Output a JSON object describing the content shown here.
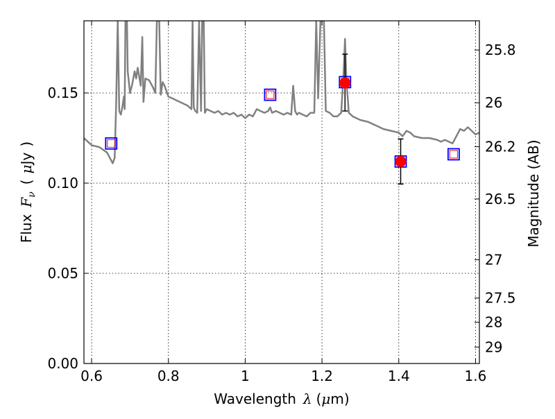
{
  "chart_data": {
    "type": "scatter",
    "xlabel": "Wavelength",
    "xlabel_symbol": "λ",
    "xlabel_unit_prefix": "μ",
    "xlabel_unit": "m",
    "ylabel": "Flux",
    "ylabel_symbol": "F",
    "ylabel_symbol_sub": "ν",
    "ylabel_unit_prefix": "μ",
    "ylabel_unit": "Jy",
    "y2label": "Magnitude (AB)",
    "xlim": [
      0.58,
      1.61
    ],
    "ylim": [
      0.0,
      0.19
    ],
    "grid": true,
    "x_ticks": [
      {
        "value": 0.6,
        "label": "0.6"
      },
      {
        "value": 0.8,
        "label": "0.8"
      },
      {
        "value": 1.0,
        "label": "1"
      },
      {
        "value": 1.2,
        "label": "1.2"
      },
      {
        "value": 1.4,
        "label": "1.4"
      },
      {
        "value": 1.6,
        "label": "1.6"
      }
    ],
    "y_ticks": [
      {
        "value": 0.0,
        "label": "0.00"
      },
      {
        "value": 0.05,
        "label": "0.05"
      },
      {
        "value": 0.1,
        "label": "0.10"
      },
      {
        "value": 0.15,
        "label": "0.15"
      }
    ],
    "y2_ticks": [
      {
        "mag": 25.8,
        "label": "25.8"
      },
      {
        "mag": 26.0,
        "label": "26"
      },
      {
        "mag": 26.2,
        "label": "26.2"
      },
      {
        "mag": 26.5,
        "label": "26.5"
      },
      {
        "mag": 27.0,
        "label": "27"
      },
      {
        "mag": 27.5,
        "label": "27.5"
      },
      {
        "mag": 28.0,
        "label": "28"
      },
      {
        "mag": 29.0,
        "label": "29"
      }
    ],
    "spectrum": {
      "color": "#808080",
      "points": [
        [
          0.58,
          0.125
        ],
        [
          0.6,
          0.121
        ],
        [
          0.62,
          0.12
        ],
        [
          0.64,
          0.117
        ],
        [
          0.65,
          0.113
        ],
        [
          0.655,
          0.111
        ],
        [
          0.66,
          0.114
        ],
        [
          0.664,
          0.145
        ],
        [
          0.668,
          0.19
        ],
        [
          0.672,
          0.14
        ],
        [
          0.676,
          0.138
        ],
        [
          0.68,
          0.142
        ],
        [
          0.684,
          0.148
        ],
        [
          0.686,
          0.141
        ],
        [
          0.688,
          0.19
        ],
        [
          0.692,
          0.19
        ],
        [
          0.694,
          0.162
        ],
        [
          0.7,
          0.15
        ],
        [
          0.706,
          0.155
        ],
        [
          0.712,
          0.162
        ],
        [
          0.716,
          0.158
        ],
        [
          0.72,
          0.164
        ],
        [
          0.724,
          0.159
        ],
        [
          0.728,
          0.154
        ],
        [
          0.732,
          0.181
        ],
        [
          0.735,
          0.145
        ],
        [
          0.74,
          0.158
        ],
        [
          0.75,
          0.157
        ],
        [
          0.76,
          0.153
        ],
        [
          0.766,
          0.15
        ],
        [
          0.77,
          0.19
        ],
        [
          0.776,
          0.19
        ],
        [
          0.78,
          0.149
        ],
        [
          0.785,
          0.156
        ],
        [
          0.79,
          0.154
        ],
        [
          0.8,
          0.148
        ],
        [
          0.81,
          0.147
        ],
        [
          0.82,
          0.146
        ],
        [
          0.83,
          0.145
        ],
        [
          0.84,
          0.144
        ],
        [
          0.85,
          0.143
        ],
        [
          0.86,
          0.141
        ],
        [
          0.863,
          0.19
        ],
        [
          0.866,
          0.142
        ],
        [
          0.87,
          0.14
        ],
        [
          0.875,
          0.139
        ],
        [
          0.88,
          0.19
        ],
        [
          0.885,
          0.14
        ],
        [
          0.888,
          0.19
        ],
        [
          0.892,
          0.19
        ],
        [
          0.895,
          0.139
        ],
        [
          0.9,
          0.141
        ],
        [
          0.91,
          0.14
        ],
        [
          0.92,
          0.139
        ],
        [
          0.93,
          0.14
        ],
        [
          0.94,
          0.138
        ],
        [
          0.95,
          0.139
        ],
        [
          0.96,
          0.138
        ],
        [
          0.97,
          0.139
        ],
        [
          0.98,
          0.137
        ],
        [
          0.99,
          0.138
        ],
        [
          1.0,
          0.136
        ],
        [
          1.01,
          0.138
        ],
        [
          1.02,
          0.137
        ],
        [
          1.03,
          0.141
        ],
        [
          1.04,
          0.14
        ],
        [
          1.05,
          0.139
        ],
        [
          1.06,
          0.14
        ],
        [
          1.065,
          0.142
        ],
        [
          1.07,
          0.139
        ],
        [
          1.08,
          0.14
        ],
        [
          1.09,
          0.139
        ],
        [
          1.1,
          0.138
        ],
        [
          1.11,
          0.139
        ],
        [
          1.12,
          0.138
        ],
        [
          1.125,
          0.154
        ],
        [
          1.13,
          0.14
        ],
        [
          1.135,
          0.138
        ],
        [
          1.14,
          0.139
        ],
        [
          1.15,
          0.138
        ],
        [
          1.16,
          0.137
        ],
        [
          1.17,
          0.139
        ],
        [
          1.18,
          0.139
        ],
        [
          1.185,
          0.19
        ],
        [
          1.19,
          0.147
        ],
        [
          1.196,
          0.19
        ],
        [
          1.205,
          0.19
        ],
        [
          1.21,
          0.14
        ],
        [
          1.22,
          0.139
        ],
        [
          1.23,
          0.137
        ],
        [
          1.24,
          0.137
        ],
        [
          1.25,
          0.139
        ],
        [
          1.256,
          0.16
        ],
        [
          1.26,
          0.18
        ],
        [
          1.264,
          0.156
        ],
        [
          1.27,
          0.139
        ],
        [
          1.28,
          0.137
        ],
        [
          1.3,
          0.135
        ],
        [
          1.32,
          0.134
        ],
        [
          1.34,
          0.132
        ],
        [
          1.36,
          0.13
        ],
        [
          1.38,
          0.129
        ],
        [
          1.4,
          0.128
        ],
        [
          1.41,
          0.126
        ],
        [
          1.42,
          0.129
        ],
        [
          1.43,
          0.128
        ],
        [
          1.44,
          0.126
        ],
        [
          1.46,
          0.125
        ],
        [
          1.48,
          0.125
        ],
        [
          1.5,
          0.124
        ],
        [
          1.51,
          0.123
        ],
        [
          1.52,
          0.124
        ],
        [
          1.54,
          0.122
        ],
        [
          1.55,
          0.126
        ],
        [
          1.56,
          0.13
        ],
        [
          1.57,
          0.129
        ],
        [
          1.58,
          0.131
        ],
        [
          1.59,
          0.129
        ],
        [
          1.6,
          0.127
        ],
        [
          1.61,
          0.128
        ]
      ]
    },
    "model_photometry": {
      "marker": "square",
      "color": "#0000ff",
      "points": [
        {
          "x": 0.651,
          "y": 0.122
        },
        {
          "x": 1.065,
          "y": 0.149
        },
        {
          "x": 1.26,
          "y": 0.156
        },
        {
          "x": 1.405,
          "y": 0.112
        },
        {
          "x": 1.543,
          "y": 0.116
        }
      ]
    },
    "observed": {
      "marker": "circle",
      "color": "#ff0000",
      "errorbar_color": "#000000",
      "points": [
        {
          "x": 1.26,
          "y": 0.1555,
          "yerr_low": 0.0155,
          "yerr_high": 0.016
        },
        {
          "x": 1.405,
          "y": 0.112,
          "yerr_low": 0.0125,
          "yerr_high": 0.0125
        }
      ]
    }
  }
}
